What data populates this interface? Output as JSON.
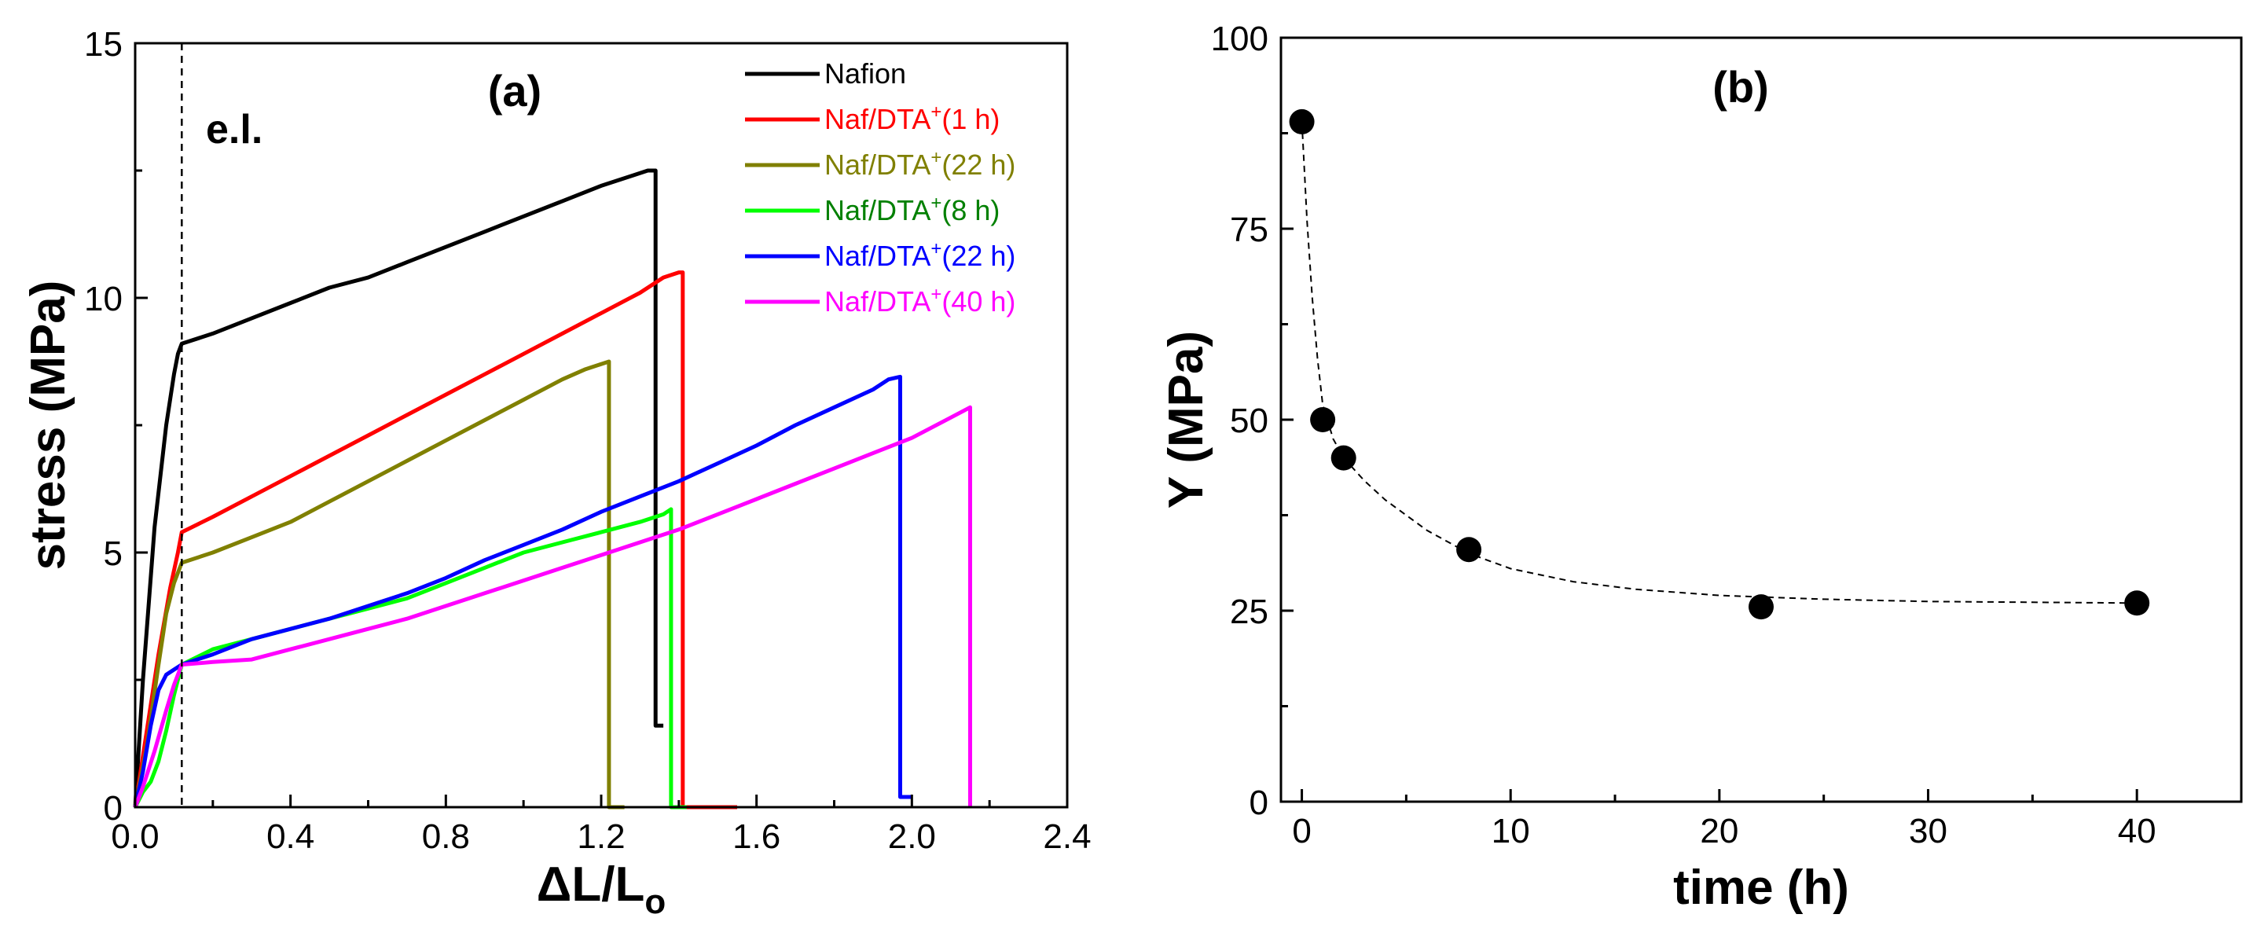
{
  "chart_data": [
    {
      "panel": "a",
      "type": "line",
      "panel_label": "(a)",
      "annotation": "e.l.",
      "xlabel": "ΔL/L",
      "xlabel_sub": "o",
      "ylabel": "stress (MPa)",
      "xlim": [
        0.0,
        2.4
      ],
      "ylim": [
        0,
        15
      ],
      "xticks": [
        "0.0",
        "0.4",
        "0.8",
        "1.2",
        "1.6",
        "2.0",
        "2.4"
      ],
      "yticks": [
        "0",
        "5",
        "10",
        "15"
      ],
      "elastic_limit_x": 0.12,
      "series": [
        {
          "name": "Nafion",
          "label_main": "Nafion",
          "label_sup": "",
          "label_tail": "",
          "color": "#000000",
          "label_color": "#000000",
          "x": [
            0,
            0.02,
            0.05,
            0.08,
            0.1,
            0.11,
            0.12,
            0.2,
            0.3,
            0.4,
            0.5,
            0.6,
            0.7,
            0.8,
            0.9,
            1.0,
            1.1,
            1.2,
            1.28,
            1.32,
            1.34,
            1.34,
            1.36
          ],
          "y": [
            0,
            2.5,
            5.5,
            7.5,
            8.5,
            8.9,
            9.1,
            9.3,
            9.6,
            9.9,
            10.2,
            10.4,
            10.7,
            11.0,
            11.3,
            11.6,
            11.9,
            12.2,
            12.4,
            12.5,
            12.5,
            1.6,
            1.6
          ]
        },
        {
          "name": "Naf/DTA+(1 h)",
          "label_main": "Naf/DTA",
          "label_sup": "+",
          "label_tail": "(1 h)",
          "color": "#ff0000",
          "label_color": "#ff0000",
          "x": [
            0,
            0.03,
            0.06,
            0.09,
            0.11,
            0.12,
            0.2,
            0.3,
            0.4,
            0.5,
            0.6,
            0.7,
            0.8,
            0.9,
            1.0,
            1.1,
            1.2,
            1.3,
            1.36,
            1.4,
            1.41,
            1.41,
            1.55
          ],
          "y": [
            0,
            1.5,
            3.0,
            4.3,
            5.0,
            5.4,
            5.7,
            6.1,
            6.5,
            6.9,
            7.3,
            7.7,
            8.1,
            8.5,
            8.9,
            9.3,
            9.7,
            10.1,
            10.4,
            10.5,
            10.5,
            0,
            0
          ]
        },
        {
          "name": "Naf/DTA+(22 h)",
          "label_main": "Naf/DTA",
          "label_sup": "+",
          "label_tail": "(22 h)",
          "color": "#808000",
          "label_color": "#808000",
          "x": [
            0,
            0.03,
            0.06,
            0.08,
            0.1,
            0.12,
            0.2,
            0.3,
            0.4,
            0.5,
            0.6,
            0.7,
            0.8,
            0.9,
            1.0,
            1.1,
            1.16,
            1.2,
            1.22,
            1.22,
            1.26
          ],
          "y": [
            0,
            1.2,
            2.8,
            3.8,
            4.4,
            4.8,
            5.0,
            5.3,
            5.6,
            6.0,
            6.4,
            6.8,
            7.2,
            7.6,
            8.0,
            8.4,
            8.6,
            8.7,
            8.75,
            0,
            0
          ]
        },
        {
          "name": "Naf/DTA+(8 h)",
          "label_main": "Naf/DTA",
          "label_sup": "+",
          "label_tail": "(8 h)",
          "color": "#00ff00",
          "label_color": "#008000",
          "x": [
            0,
            0.02,
            0.04,
            0.06,
            0.08,
            0.1,
            0.12,
            0.2,
            0.3,
            0.4,
            0.5,
            0.6,
            0.7,
            0.8,
            0.9,
            1.0,
            1.1,
            1.2,
            1.3,
            1.36,
            1.38,
            1.38,
            1.42
          ],
          "y": [
            0,
            0.3,
            0.5,
            0.9,
            1.5,
            2.2,
            2.8,
            3.1,
            3.3,
            3.5,
            3.7,
            3.9,
            4.1,
            4.4,
            4.7,
            5.0,
            5.2,
            5.4,
            5.6,
            5.75,
            5.85,
            0,
            0
          ]
        },
        {
          "name": "Naf/DTA+(22 h) blue",
          "label_main": "Naf/DTA",
          "label_sup": "+",
          "label_tail": "(22 h)",
          "color": "#0000ff",
          "label_color": "#0000ff",
          "x": [
            0,
            0.02,
            0.04,
            0.06,
            0.08,
            0.1,
            0.12,
            0.2,
            0.3,
            0.4,
            0.5,
            0.6,
            0.7,
            0.8,
            0.9,
            1.0,
            1.1,
            1.2,
            1.3,
            1.4,
            1.5,
            1.6,
            1.7,
            1.8,
            1.9,
            1.94,
            1.97,
            1.97,
            2.0
          ],
          "y": [
            0,
            0.7,
            1.6,
            2.3,
            2.6,
            2.7,
            2.8,
            3.0,
            3.3,
            3.5,
            3.7,
            3.95,
            4.2,
            4.5,
            4.85,
            5.15,
            5.45,
            5.8,
            6.1,
            6.4,
            6.75,
            7.1,
            7.5,
            7.85,
            8.2,
            8.4,
            8.45,
            0.2,
            0.2
          ]
        },
        {
          "name": "Naf/DTA+(40 h)",
          "label_main": "Naf/DTA",
          "label_sup": "+",
          "label_tail": "(40 h)",
          "color": "#ff00ff",
          "label_color": "#ff00ff",
          "x": [
            0,
            0.02,
            0.05,
            0.08,
            0.1,
            0.12,
            0.2,
            0.3,
            0.4,
            0.5,
            0.6,
            0.7,
            0.8,
            0.9,
            1.0,
            1.1,
            1.2,
            1.3,
            1.4,
            1.5,
            1.6,
            1.7,
            1.8,
            1.9,
            2.0,
            2.1,
            2.15,
            2.15
          ],
          "y": [
            0,
            0.4,
            1.1,
            1.9,
            2.4,
            2.8,
            2.85,
            2.9,
            3.1,
            3.3,
            3.5,
            3.7,
            3.95,
            4.2,
            4.45,
            4.7,
            4.95,
            5.2,
            5.45,
            5.75,
            6.05,
            6.35,
            6.65,
            6.95,
            7.25,
            7.65,
            7.85,
            0
          ]
        }
      ]
    },
    {
      "panel": "b",
      "type": "scatter",
      "panel_label": "(b)",
      "xlabel": "time (h)",
      "ylabel": "Y (MPa)",
      "xlim": [
        -1,
        45
      ],
      "ylim": [
        0,
        100
      ],
      "xticks": [
        "0",
        "10",
        "20",
        "30",
        "40"
      ],
      "yticks": [
        "0",
        "25",
        "50",
        "75",
        "100"
      ],
      "x": [
        0,
        1,
        2,
        8,
        22,
        40
      ],
      "y": [
        89,
        50,
        45,
        33,
        25.5,
        26
      ],
      "fit_curve": {
        "style": "dashed",
        "x": [
          0,
          0.25,
          0.5,
          0.75,
          1,
          1.5,
          2,
          3,
          4,
          6,
          8,
          10,
          13,
          16,
          20,
          25,
          30,
          35,
          40
        ],
        "y": [
          89,
          76,
          66,
          58,
          52,
          47.5,
          45,
          42,
          39.5,
          35.5,
          32.5,
          30.5,
          28.8,
          27.8,
          27,
          26.5,
          26.2,
          26.1,
          26
        ]
      }
    }
  ]
}
